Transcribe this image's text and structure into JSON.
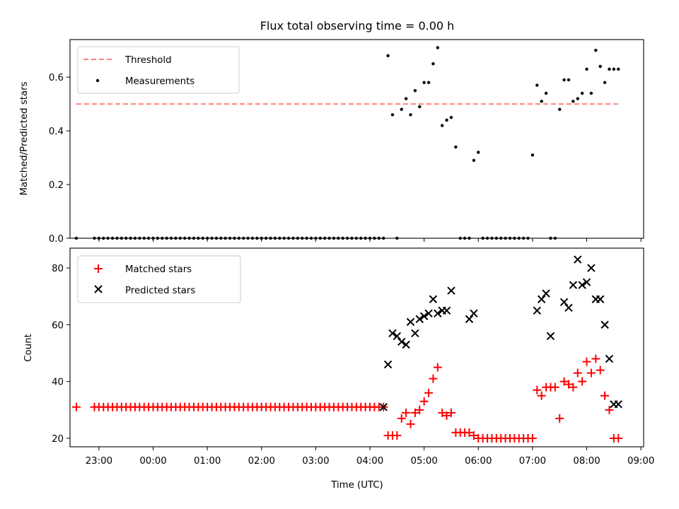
{
  "figure": {
    "title": "Flux total observing time = 0.00 h",
    "xlabel": "Time (UTC)"
  },
  "x_ticks": [
    "23:00",
    "00:00",
    "01:00",
    "02:00",
    "03:00",
    "04:00",
    "05:00",
    "06:00",
    "07:00",
    "08:00",
    "09:00"
  ],
  "colors": {
    "threshold": "#ff7f7f",
    "measurements": "#000000",
    "matched": "#ff0000",
    "predicted": "#000000",
    "axes": "#000000"
  },
  "chart_data": [
    {
      "type": "scatter",
      "ylabel": "Matched/Predicted stars",
      "x_range": [
        "22:28",
        "09:03"
      ],
      "ylim": [
        0,
        0.74
      ],
      "y_ticks": [
        0.0,
        0.2,
        0.4,
        0.6
      ],
      "y_tick_labels": [
        "0.0",
        "0.2",
        "0.4",
        "0.6"
      ],
      "grid": false,
      "legend_position": "upper-left",
      "series": [
        {
          "name": "Threshold",
          "style": "dashed-line",
          "x": [
            "22:35",
            "08:35"
          ],
          "y": [
            0.5,
            0.5
          ]
        },
        {
          "name": "Measurements",
          "style": "dot",
          "x": [
            "22:35",
            "22:55",
            "23:00",
            "23:05",
            "23:10",
            "23:15",
            "23:20",
            "23:25",
            "23:30",
            "23:35",
            "23:40",
            "23:45",
            "23:50",
            "23:55",
            "00:00",
            "00:05",
            "00:10",
            "00:15",
            "00:20",
            "00:25",
            "00:30",
            "00:35",
            "00:40",
            "00:45",
            "00:50",
            "00:55",
            "01:00",
            "01:05",
            "01:10",
            "01:15",
            "01:20",
            "01:25",
            "01:30",
            "01:35",
            "01:40",
            "01:45",
            "01:50",
            "01:55",
            "02:00",
            "02:05",
            "02:10",
            "02:15",
            "02:20",
            "02:25",
            "02:30",
            "02:35",
            "02:40",
            "02:45",
            "02:50",
            "02:55",
            "03:00",
            "03:05",
            "03:10",
            "03:15",
            "03:20",
            "03:25",
            "03:30",
            "03:35",
            "03:40",
            "03:45",
            "03:50",
            "03:55",
            "04:00",
            "04:05",
            "04:10",
            "04:15",
            "04:20",
            "04:25",
            "04:30",
            "04:35",
            "04:40",
            "04:45",
            "04:50",
            "04:55",
            "05:00",
            "05:05",
            "05:10",
            "05:15",
            "05:20",
            "05:25",
            "05:30",
            "05:35",
            "05:40",
            "05:45",
            "05:50",
            "05:55",
            "06:00",
            "06:05",
            "06:10",
            "06:15",
            "06:20",
            "06:25",
            "06:30",
            "06:35",
            "06:40",
            "06:45",
            "06:50",
            "06:55",
            "07:00",
            "07:05",
            "07:10",
            "07:15",
            "07:20",
            "07:25",
            "07:30",
            "07:35",
            "07:40",
            "07:45",
            "07:50",
            "07:55",
            "08:00",
            "08:05",
            "08:10",
            "08:15",
            "08:20",
            "08:25",
            "08:30",
            "08:35"
          ],
          "y": [
            0,
            0,
            0,
            0,
            0,
            0,
            0,
            0,
            0,
            0,
            0,
            0,
            0,
            0,
            0,
            0,
            0,
            0,
            0,
            0,
            0,
            0,
            0,
            0,
            0,
            0,
            0,
            0,
            0,
            0,
            0,
            0,
            0,
            0,
            0,
            0,
            0,
            0,
            0,
            0,
            0,
            0,
            0,
            0,
            0,
            0,
            0,
            0,
            0,
            0,
            0,
            0,
            0,
            0,
            0,
            0,
            0,
            0,
            0,
            0,
            0,
            0,
            0,
            0,
            0,
            0,
            0.68,
            0.46,
            0,
            0.48,
            0.52,
            0.46,
            0.55,
            0.49,
            0.58,
            0.58,
            0.65,
            0.71,
            0.42,
            0.44,
            0.45,
            0.34,
            0,
            0,
            0,
            0.29,
            0.32,
            0,
            0,
            0,
            0,
            0,
            0,
            0,
            0,
            0,
            0,
            0,
            0.31,
            0.57,
            0.51,
            0.54,
            0,
            0,
            0.48,
            0.59,
            0.59,
            0.51,
            0.52,
            0.54,
            0.63,
            0.54,
            0.7,
            0.64,
            0.58,
            0.63,
            0.63,
            0.63
          ]
        }
      ]
    },
    {
      "type": "scatter",
      "ylabel": "Count",
      "x_range": [
        "22:28",
        "09:03"
      ],
      "ylim": [
        17,
        87
      ],
      "y_ticks": [
        20,
        40,
        60,
        80
      ],
      "y_tick_labels": [
        "20",
        "40",
        "60",
        "80"
      ],
      "grid": false,
      "legend_position": "upper-left",
      "series": [
        {
          "name": "Matched stars",
          "marker": "plus",
          "x": [
            "22:35",
            "22:55",
            "23:00",
            "23:05",
            "23:10",
            "23:15",
            "23:20",
            "23:25",
            "23:30",
            "23:35",
            "23:40",
            "23:45",
            "23:50",
            "23:55",
            "00:00",
            "00:05",
            "00:10",
            "00:15",
            "00:20",
            "00:25",
            "00:30",
            "00:35",
            "00:40",
            "00:45",
            "00:50",
            "00:55",
            "01:00",
            "01:05",
            "01:10",
            "01:15",
            "01:20",
            "01:25",
            "01:30",
            "01:35",
            "01:40",
            "01:45",
            "01:50",
            "01:55",
            "02:00",
            "02:05",
            "02:10",
            "02:15",
            "02:20",
            "02:25",
            "02:30",
            "02:35",
            "02:40",
            "02:45",
            "02:50",
            "02:55",
            "03:00",
            "03:05",
            "03:10",
            "03:15",
            "03:20",
            "03:25",
            "03:30",
            "03:35",
            "03:40",
            "03:45",
            "03:50",
            "03:55",
            "04:00",
            "04:05",
            "04:10",
            "04:15",
            "04:20",
            "04:25",
            "04:30",
            "04:35",
            "04:40",
            "04:45",
            "04:50",
            "04:55",
            "05:00",
            "05:05",
            "05:10",
            "05:15",
            "05:20",
            "05:25",
            "05:30",
            "05:35",
            "05:40",
            "05:45",
            "05:50",
            "05:55",
            "06:00",
            "06:05",
            "06:10",
            "06:15",
            "06:20",
            "06:25",
            "06:30",
            "06:35",
            "06:40",
            "06:45",
            "06:50",
            "06:55",
            "07:00",
            "07:05",
            "07:10",
            "07:15",
            "07:20",
            "07:25",
            "07:30",
            "07:35",
            "07:40",
            "07:45",
            "07:50",
            "07:55",
            "08:00",
            "08:05",
            "08:10",
            "08:15",
            "08:20",
            "08:25",
            "08:30",
            "08:35"
          ],
          "y": [
            31,
            31,
            31,
            31,
            31,
            31,
            31,
            31,
            31,
            31,
            31,
            31,
            31,
            31,
            31,
            31,
            31,
            31,
            31,
            31,
            31,
            31,
            31,
            31,
            31,
            31,
            31,
            31,
            31,
            31,
            31,
            31,
            31,
            31,
            31,
            31,
            31,
            31,
            31,
            31,
            31,
            31,
            31,
            31,
            31,
            31,
            31,
            31,
            31,
            31,
            31,
            31,
            31,
            31,
            31,
            31,
            31,
            31,
            31,
            31,
            31,
            31,
            31,
            31,
            31,
            31,
            21,
            21,
            21,
            27,
            29,
            25,
            29,
            30,
            33,
            36,
            41,
            45,
            29,
            28,
            29,
            22,
            22,
            22,
            22,
            21,
            20,
            20,
            20,
            20,
            20,
            20,
            20,
            20,
            20,
            20,
            20,
            20,
            20,
            37,
            35,
            38,
            38,
            38,
            27,
            40,
            39,
            38,
            43,
            40,
            47,
            43,
            48,
            44,
            35,
            30,
            20,
            20
          ]
        },
        {
          "name": "Predicted stars",
          "marker": "x",
          "x": [
            "04:15",
            "04:20",
            "04:25",
            "04:30",
            "04:35",
            "04:40",
            "04:45",
            "04:50",
            "04:55",
            "05:00",
            "05:05",
            "05:10",
            "05:15",
            "05:20",
            "05:25",
            "05:30",
            "05:50",
            "05:55",
            "07:05",
            "07:10",
            "07:15",
            "07:20",
            "07:35",
            "07:40",
            "07:45",
            "07:50",
            "07:55",
            "08:00",
            "08:05",
            "08:10",
            "08:15",
            "08:20",
            "08:25",
            "08:30",
            "08:35"
          ],
          "y": [
            31,
            46,
            57,
            56,
            54,
            53,
            61,
            57,
            62,
            63,
            64,
            69,
            64,
            65,
            65,
            72,
            62,
            64,
            65,
            69,
            71,
            56,
            68,
            66,
            74,
            83,
            74,
            75,
            80,
            69,
            69,
            60,
            48,
            32,
            32
          ]
        }
      ]
    }
  ]
}
